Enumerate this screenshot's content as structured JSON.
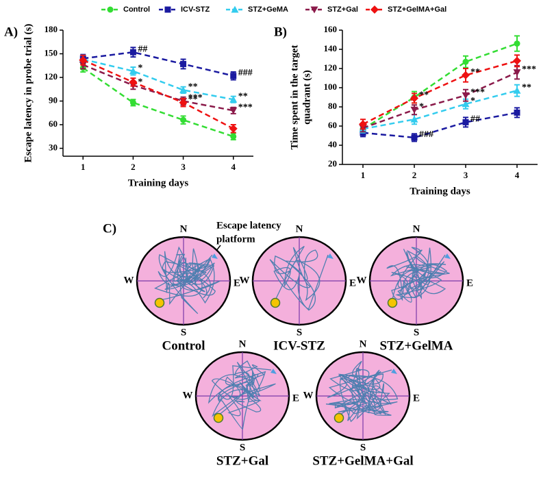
{
  "chart_data": [
    {
      "type": "line",
      "panel": "A)",
      "ylabel": "Escape latency in probe trial (s)",
      "xlabel": "Training days",
      "x": [
        1,
        2,
        3,
        4
      ],
      "xlim": [
        0.6,
        4.4
      ],
      "xticks": [
        1,
        2,
        3,
        4
      ],
      "ylim": [
        20,
        180
      ],
      "yticks": [
        30,
        60,
        90,
        120,
        150,
        180
      ],
      "series": [
        {
          "name": "Control",
          "color": "#33dd33",
          "marker": "circle",
          "values": [
            132,
            88,
            66,
            45
          ],
          "errors": [
            5,
            4,
            5,
            4
          ]
        },
        {
          "name": "ICV-STZ",
          "color": "#1a1aa0",
          "marker": "square",
          "values": [
            144,
            152,
            137,
            122
          ],
          "errors": [
            5,
            6,
            6,
            5
          ],
          "point_labels": [
            null,
            "##",
            null,
            "###"
          ]
        },
        {
          "name": "STZ+GeMA",
          "color": "#33ccee",
          "marker": "triangle-up",
          "values": [
            143,
            128,
            104,
            92
          ],
          "errors": [
            5,
            5,
            4,
            4
          ],
          "point_labels": [
            null,
            "*",
            "**",
            "**"
          ]
        },
        {
          "name": "STZ+Gal",
          "color": "#8b1a4a",
          "marker": "triangle-down",
          "values": [
            136,
            110,
            90,
            78
          ],
          "errors": [
            5,
            5,
            5,
            4
          ],
          "point_labels": [
            null,
            "*",
            "***",
            "***"
          ]
        },
        {
          "name": "STZ+GelMA+Gal",
          "color": "#ee1111",
          "marker": "diamond",
          "values": [
            142,
            114,
            88,
            55
          ],
          "errors": [
            6,
            5,
            5,
            5
          ],
          "point_labels": [
            null,
            null,
            "**",
            null
          ]
        }
      ]
    },
    {
      "type": "line",
      "panel": "B)",
      "ylabel": [
        "Time spent in the target",
        "quadrant (s)"
      ],
      "xlabel": "Training days",
      "x": [
        1,
        2,
        3,
        4
      ],
      "xlim": [
        0.6,
        4.4
      ],
      "xticks": [
        1,
        2,
        3,
        4
      ],
      "ylim": [
        20,
        160
      ],
      "yticks": [
        20,
        40,
        60,
        80,
        100,
        120,
        140,
        160
      ],
      "series": [
        {
          "name": "Control",
          "color": "#33dd33",
          "marker": "circle",
          "values": [
            57,
            90,
            127,
            146
          ],
          "errors": [
            4,
            6,
            6,
            8
          ]
        },
        {
          "name": "ICV-STZ",
          "color": "#1a1aa0",
          "marker": "square",
          "values": [
            53,
            48,
            64,
            74
          ],
          "errors": [
            4,
            4,
            5,
            5
          ],
          "point_labels": [
            null,
            "###",
            "##",
            null
          ]
        },
        {
          "name": "STZ+GeMA",
          "color": "#33ccee",
          "marker": "triangle-up",
          "values": [
            57,
            67,
            83,
            97
          ],
          "errors": [
            4,
            5,
            5,
            6
          ],
          "point_labels": [
            null,
            null,
            "*",
            "**"
          ]
        },
        {
          "name": "STZ+Gal",
          "color": "#8b1a4a",
          "marker": "triangle-down",
          "values": [
            58,
            77,
            92,
            116
          ],
          "errors": [
            4,
            5,
            6,
            7
          ],
          "point_labels": [
            null,
            "*",
            "***",
            "***"
          ]
        },
        {
          "name": "STZ+GelMA+Gal",
          "color": "#ee1111",
          "marker": "diamond",
          "values": [
            62,
            89,
            113,
            128
          ],
          "errors": [
            5,
            5,
            7,
            6
          ],
          "point_labels": [
            null,
            "**",
            "**",
            null
          ]
        }
      ]
    }
  ],
  "panel_c": {
    "label": "C)",
    "callout": [
      "Escape latency",
      "platform"
    ],
    "compass": {
      "n": "N",
      "s": "S",
      "e": "E",
      "w": "W"
    },
    "pools": [
      "Control",
      "ICV-STZ",
      "STZ+GelMA",
      "STZ+Gal",
      "STZ+GelMA+Gal"
    ]
  }
}
